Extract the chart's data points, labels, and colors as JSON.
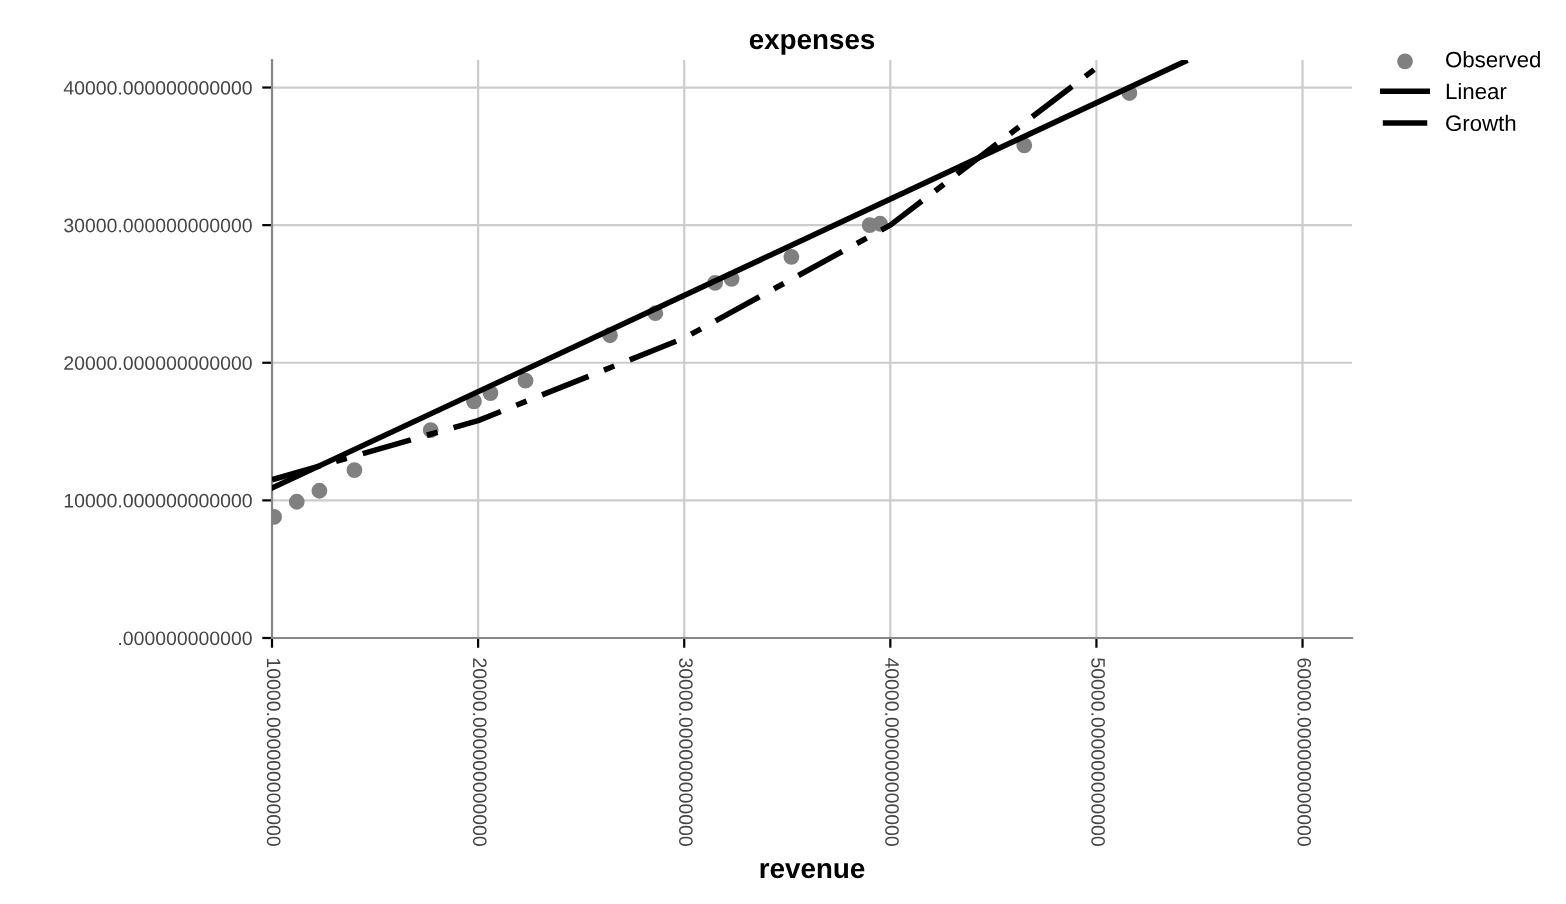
{
  "chart_data": {
    "type": "scatter",
    "title": "expenses",
    "xlabel": "revenue",
    "xlim": [
      10000,
      62400
    ],
    "ylim": [
      0,
      42000
    ],
    "xticks": [
      {
        "value": 10000,
        "label": "10000.000000000000"
      },
      {
        "value": 20000,
        "label": "20000.000000000000"
      },
      {
        "value": 30000,
        "label": "30000.000000000000"
      },
      {
        "value": 40000,
        "label": "40000.000000000000"
      },
      {
        "value": 50000,
        "label": "50000.000000000000"
      },
      {
        "value": 60000,
        "label": "60000.000000000000"
      }
    ],
    "yticks": [
      {
        "value": 0,
        "label": ".000000000000"
      },
      {
        "value": 10000,
        "label": "10000.000000000000"
      },
      {
        "value": 20000,
        "label": "20000.000000000000"
      },
      {
        "value": 30000,
        "label": "30000.000000000000"
      },
      {
        "value": 40000,
        "label": "40000.000000000000"
      }
    ],
    "grid": true,
    "legend": "top right",
    "series": [
      {
        "name": "Observed",
        "color": "#808080",
        "marker": "circle",
        "x": [
          10100,
          11200,
          12300,
          14000,
          17700,
          19800,
          20600,
          22300,
          26400,
          28600,
          31500,
          32300,
          35200,
          39000,
          39500,
          46500,
          51600
        ],
        "values": [
          8800,
          9900,
          10700,
          12200,
          15100,
          17200,
          17800,
          18700,
          22000,
          23600,
          25800,
          26100,
          27700,
          30000,
          30100,
          35800,
          39600
        ]
      },
      {
        "name": "Linear",
        "type": "line",
        "color": "#000000",
        "line_style": "solid",
        "x": [
          10000,
          54300
        ],
        "values": [
          10900,
          41900
        ]
      },
      {
        "name": "Growth",
        "type": "line",
        "color": "#000000",
        "line_style": "dashed",
        "x": [
          10000,
          20000,
          30000,
          40000,
          50500
        ],
        "values": [
          11500,
          15800,
          21800,
          30000,
          42000
        ]
      }
    ]
  }
}
